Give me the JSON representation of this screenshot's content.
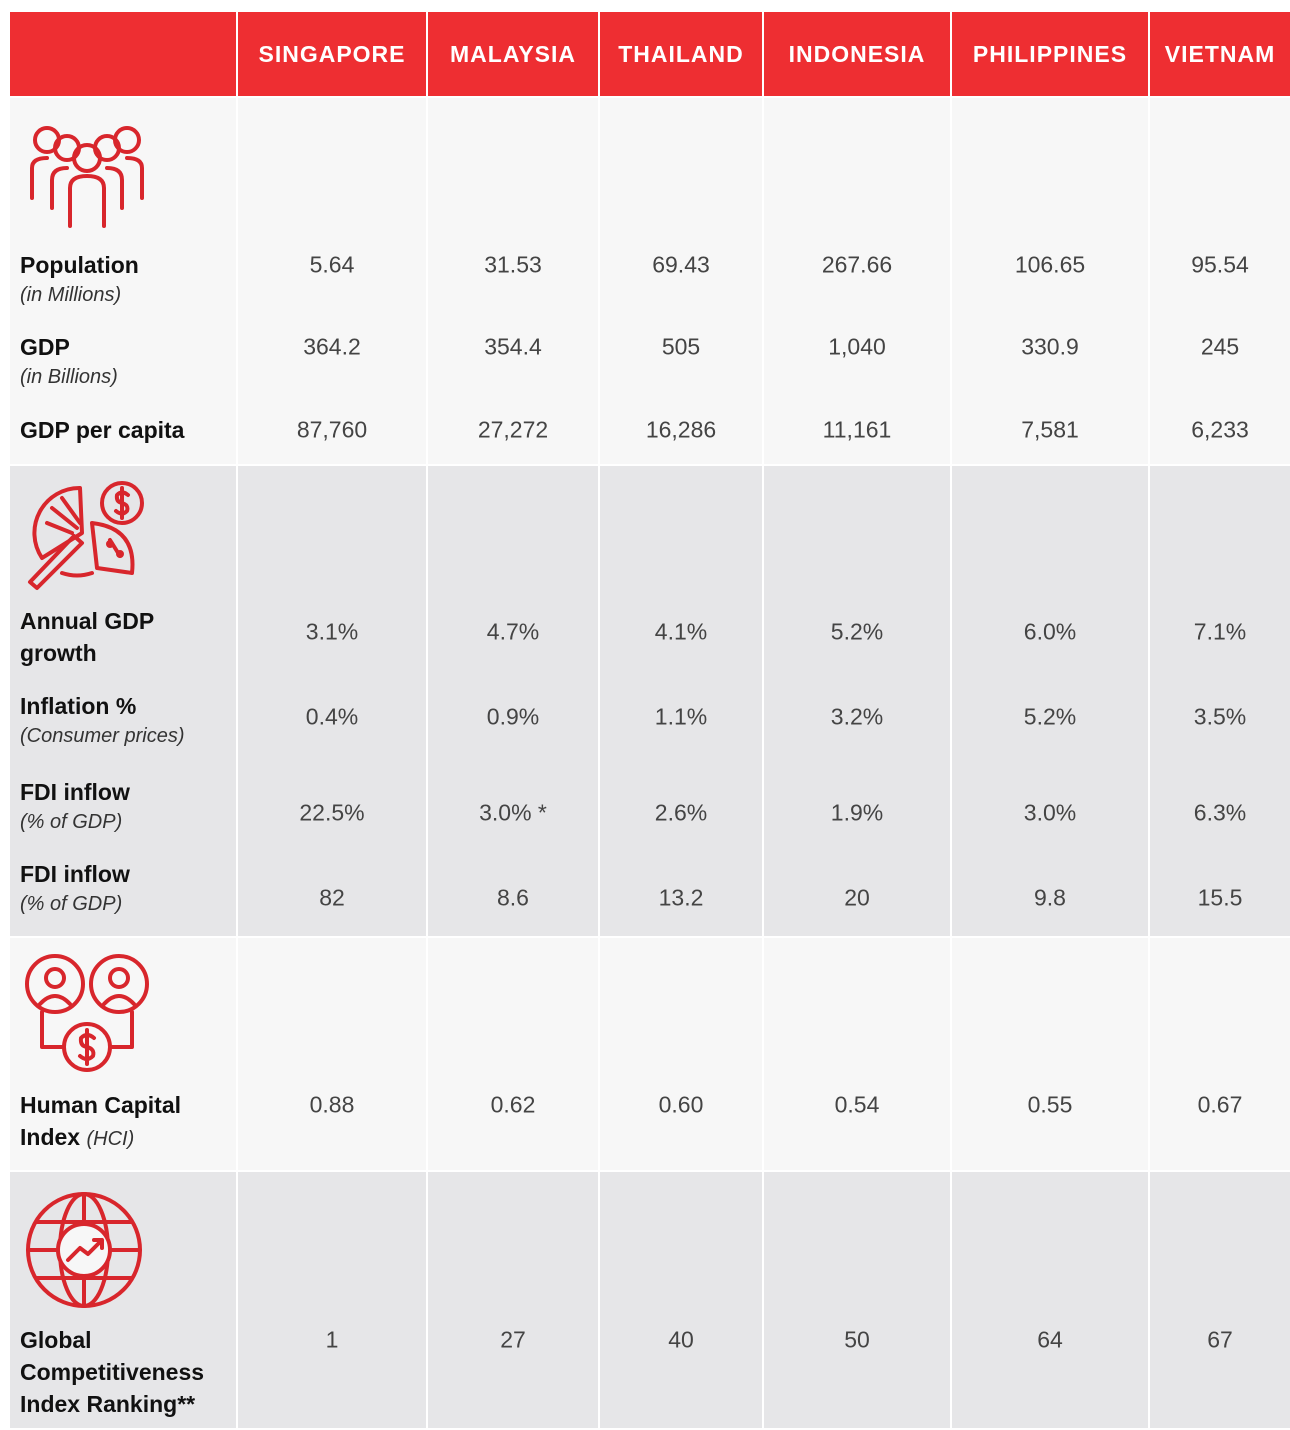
{
  "header": {
    "columns": [
      "SINGAPORE",
      "MALAYSIA",
      "THAILAND",
      "INDONESIA",
      "PHILIPPINES",
      "VIETNAM"
    ]
  },
  "sections": [
    {
      "rows": [
        {
          "label": "Population",
          "sublabel": "(in Millions)",
          "values": [
            "5.64",
            "31.53",
            "69.43",
            "267.66",
            "106.65",
            "95.54"
          ]
        },
        {
          "label": "GDP",
          "sublabel": "(in Billions)",
          "values": [
            "364.2",
            "354.4",
            "505",
            "1,040",
            "330.9",
            "245"
          ]
        },
        {
          "label": "GDP per capita",
          "values": [
            "87,760",
            "27,272",
            "16,286",
            "11,161",
            "7,581",
            "6,233"
          ]
        }
      ]
    },
    {
      "rows": [
        {
          "label": "Annual GDP growth",
          "values": [
            "3.1%",
            "4.7%",
            "4.1%",
            "5.2%",
            "6.0%",
            "7.1%"
          ]
        },
        {
          "label": "Inflation %",
          "sublabel": "(Consumer prices)",
          "values": [
            "0.4%",
            "0.9%",
            "1.1%",
            "3.2%",
            "5.2%",
            "3.5%"
          ]
        },
        {
          "label": "FDI inflow",
          "sublabel": "(% of GDP)",
          "values": [
            "22.5%",
            "3.0% *",
            "2.6%",
            "1.9%",
            "3.0%",
            "6.3%"
          ]
        },
        {
          "label": "FDI inflow",
          "sublabel": "(% of GDP)",
          "values": [
            "82",
            "8.6",
            "13.2",
            "20",
            "9.8",
            "15.5"
          ]
        }
      ]
    },
    {
      "rows": [
        {
          "label": "Human Capital Index",
          "sublabel": "(HCI)",
          "values": [
            "0.88",
            "0.62",
            "0.60",
            "0.54",
            "0.55",
            "0.67"
          ]
        }
      ]
    },
    {
      "rows": [
        {
          "label": "Global Competitiveness Index Ranking**",
          "values": [
            "1",
            "27",
            "40",
            "50",
            "64",
            "67"
          ]
        }
      ]
    }
  ]
}
